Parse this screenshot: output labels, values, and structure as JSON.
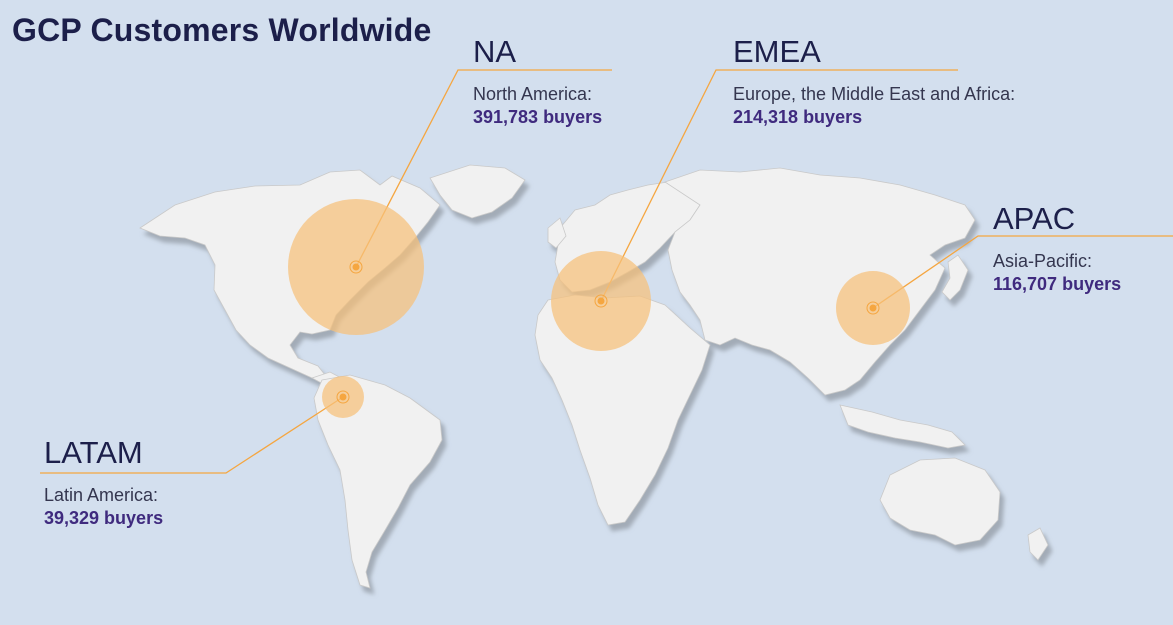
{
  "title": "GCP Customers Worldwide",
  "colors": {
    "ocean": "#d3dfee",
    "land": "#f1f1f1",
    "land_shadow": "#b9c1cb",
    "bubble": "#f7c07a",
    "leader_line": "#f5a640",
    "value_text": "#3f2a7e"
  },
  "regions": [
    {
      "code": "NA",
      "name": "North America:",
      "value": "391,783 buyers",
      "buyers": 391783
    },
    {
      "code": "EMEA",
      "name": "Europe, the Middle East and Africa:",
      "value": "214,318 buyers",
      "buyers": 214318
    },
    {
      "code": "APAC",
      "name": "Asia-Pacific:",
      "value": "116,707 buyers",
      "buyers": 116707
    },
    {
      "code": "LATAM",
      "name": "Latin America:",
      "value": "39,329 buyers",
      "buyers": 39329
    }
  ]
}
